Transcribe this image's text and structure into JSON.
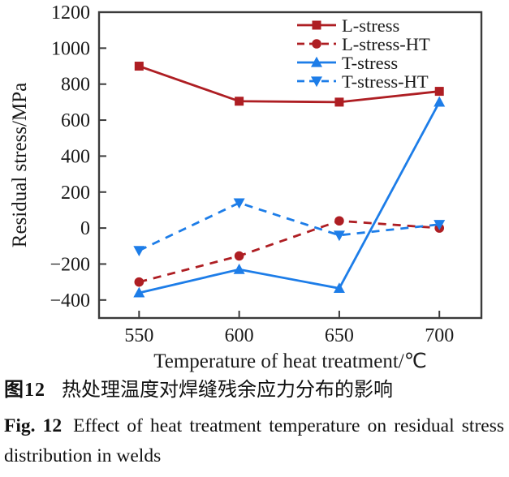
{
  "figure": {
    "caption_zh": {
      "label": "图12",
      "text": "热处理温度对焊缝残余应力分布的影响"
    },
    "caption_en": {
      "label": "Fig. 12",
      "text": "Effect of heat treatment temperature on residual stress distribution in welds"
    }
  },
  "chart_data": {
    "type": "line",
    "title": "",
    "xlabel": "Temperature of heat treatment/℃",
    "ylabel": "Residual stress/MPa",
    "x": [
      550,
      600,
      650,
      700
    ],
    "x_ticks": [
      550,
      600,
      650,
      700
    ],
    "y_ticks": [
      -400,
      -200,
      0,
      200,
      400,
      600,
      800,
      1000,
      1200
    ],
    "xlim": [
      530,
      721
    ],
    "ylim": [
      -500,
      1200
    ],
    "grid": false,
    "legend_position": "top-right-inside",
    "series": [
      {
        "name": "L-stress",
        "color": "#ae1e23",
        "line": "solid",
        "marker": "square",
        "values": [
          900,
          705,
          700,
          760
        ]
      },
      {
        "name": "L-stress-HT",
        "color": "#ae1e23",
        "line": "dashed",
        "marker": "circle",
        "values": [
          -300,
          -155,
          40,
          0
        ]
      },
      {
        "name": "T-stress",
        "color": "#1d7de8",
        "line": "solid",
        "marker": "triangle-up",
        "values": [
          -360,
          -230,
          -335,
          700
        ]
      },
      {
        "name": "T-stress-HT",
        "color": "#1d7de8",
        "line": "dashed",
        "marker": "triangle-down",
        "values": [
          -125,
          140,
          -40,
          20
        ]
      }
    ],
    "axis_color": "#3b3b3b",
    "text_color": "#1a1a1a"
  }
}
